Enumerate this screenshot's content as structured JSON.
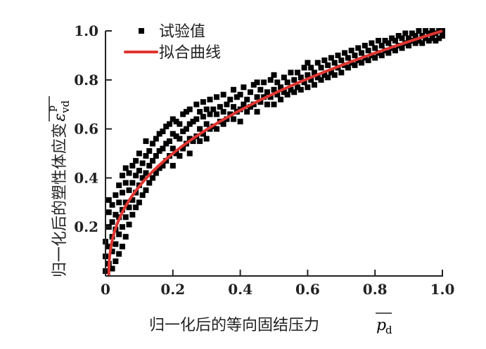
{
  "chart_data": {
    "type": "scatter",
    "title": "",
    "xlabel": "归一化后的等向固结压力",
    "xlabel_symbol": "p",
    "xlabel_sub": "d",
    "ylabel": "归一化后的塑性体应变",
    "ylabel_symbol": "ε",
    "ylabel_sub": "vd",
    "ylabel_sup": "p",
    "xlim": [
      0,
      1.0
    ],
    "ylim": [
      0,
      1.0
    ],
    "xticks": [
      "0",
      "0.2",
      "0.4",
      "0.6",
      "0.8",
      "1.0"
    ],
    "xtick_values": [
      0,
      0.2,
      0.4,
      0.6,
      0.8,
      1.0
    ],
    "yticks": [
      "0.2",
      "0.4",
      "0.6",
      "0.8",
      "1.0"
    ],
    "ytick_values": [
      0.2,
      0.4,
      0.6,
      0.8,
      1.0
    ],
    "grid": false,
    "legend_position": "top-left",
    "series": [
      {
        "name": "试验值",
        "kind": "scatter",
        "color": "#000000",
        "points": [
          [
            0.0,
            0.02
          ],
          [
            0.0,
            0.08
          ],
          [
            0.0,
            0.14
          ],
          [
            0.01,
            0.05
          ],
          [
            0.01,
            0.12
          ],
          [
            0.01,
            0.2
          ],
          [
            0.01,
            0.26
          ],
          [
            0.01,
            0.31
          ],
          [
            0.02,
            0.03
          ],
          [
            0.02,
            0.1
          ],
          [
            0.02,
            0.16
          ],
          [
            0.02,
            0.22
          ],
          [
            0.02,
            0.29
          ],
          [
            0.03,
            0.06
          ],
          [
            0.03,
            0.13
          ],
          [
            0.03,
            0.19
          ],
          [
            0.03,
            0.25
          ],
          [
            0.03,
            0.33
          ],
          [
            0.04,
            0.09
          ],
          [
            0.04,
            0.17
          ],
          [
            0.04,
            0.24
          ],
          [
            0.04,
            0.3
          ],
          [
            0.04,
            0.37
          ],
          [
            0.05,
            0.12
          ],
          [
            0.05,
            0.2
          ],
          [
            0.05,
            0.27
          ],
          [
            0.05,
            0.34
          ],
          [
            0.05,
            0.41
          ],
          [
            0.06,
            0.16
          ],
          [
            0.06,
            0.24
          ],
          [
            0.06,
            0.3
          ],
          [
            0.06,
            0.38
          ],
          [
            0.06,
            0.44
          ],
          [
            0.07,
            0.21
          ],
          [
            0.07,
            0.28
          ],
          [
            0.07,
            0.35
          ],
          [
            0.07,
            0.42
          ],
          [
            0.08,
            0.25
          ],
          [
            0.08,
            0.31
          ],
          [
            0.08,
            0.38
          ],
          [
            0.08,
            0.45
          ],
          [
            0.09,
            0.28
          ],
          [
            0.09,
            0.34
          ],
          [
            0.09,
            0.41
          ],
          [
            0.09,
            0.47
          ],
          [
            0.1,
            0.3
          ],
          [
            0.1,
            0.37
          ],
          [
            0.1,
            0.43
          ],
          [
            0.1,
            0.5
          ],
          [
            0.11,
            0.33
          ],
          [
            0.11,
            0.4
          ],
          [
            0.11,
            0.46
          ],
          [
            0.12,
            0.35
          ],
          [
            0.12,
            0.42
          ],
          [
            0.12,
            0.49
          ],
          [
            0.12,
            0.55
          ],
          [
            0.13,
            0.38
          ],
          [
            0.13,
            0.45
          ],
          [
            0.13,
            0.51
          ],
          [
            0.14,
            0.4
          ],
          [
            0.14,
            0.47
          ],
          [
            0.14,
            0.54
          ],
          [
            0.15,
            0.42
          ],
          [
            0.15,
            0.49
          ],
          [
            0.15,
            0.56
          ],
          [
            0.16,
            0.44
          ],
          [
            0.16,
            0.51
          ],
          [
            0.16,
            0.58
          ],
          [
            0.17,
            0.45
          ],
          [
            0.17,
            0.52
          ],
          [
            0.17,
            0.59
          ],
          [
            0.18,
            0.47
          ],
          [
            0.18,
            0.54
          ],
          [
            0.18,
            0.61
          ],
          [
            0.19,
            0.49
          ],
          [
            0.19,
            0.55
          ],
          [
            0.19,
            0.62
          ],
          [
            0.2,
            0.45
          ],
          [
            0.2,
            0.52
          ],
          [
            0.2,
            0.58
          ],
          [
            0.2,
            0.64
          ],
          [
            0.21,
            0.5
          ],
          [
            0.21,
            0.57
          ],
          [
            0.21,
            0.63
          ],
          [
            0.22,
            0.49
          ],
          [
            0.22,
            0.56
          ],
          [
            0.22,
            0.62
          ],
          [
            0.23,
            0.52
          ],
          [
            0.23,
            0.59
          ],
          [
            0.23,
            0.66
          ],
          [
            0.24,
            0.54
          ],
          [
            0.24,
            0.6
          ],
          [
            0.24,
            0.67
          ],
          [
            0.25,
            0.5
          ],
          [
            0.25,
            0.56
          ],
          [
            0.25,
            0.62
          ],
          [
            0.25,
            0.68
          ],
          [
            0.26,
            0.55
          ],
          [
            0.26,
            0.63
          ],
          [
            0.27,
            0.57
          ],
          [
            0.27,
            0.64
          ],
          [
            0.27,
            0.7
          ],
          [
            0.28,
            0.55
          ],
          [
            0.28,
            0.6
          ],
          [
            0.28,
            0.67
          ],
          [
            0.29,
            0.58
          ],
          [
            0.29,
            0.65
          ],
          [
            0.29,
            0.71
          ],
          [
            0.3,
            0.56
          ],
          [
            0.3,
            0.62
          ],
          [
            0.3,
            0.68
          ],
          [
            0.31,
            0.6
          ],
          [
            0.31,
            0.66
          ],
          [
            0.31,
            0.72
          ],
          [
            0.32,
            0.61
          ],
          [
            0.32,
            0.68
          ],
          [
            0.33,
            0.6
          ],
          [
            0.33,
            0.66
          ],
          [
            0.33,
            0.73
          ],
          [
            0.34,
            0.63
          ],
          [
            0.34,
            0.69
          ],
          [
            0.35,
            0.62
          ],
          [
            0.35,
            0.67
          ],
          [
            0.35,
            0.74
          ],
          [
            0.36,
            0.64
          ],
          [
            0.36,
            0.7
          ],
          [
            0.37,
            0.66
          ],
          [
            0.37,
            0.72
          ],
          [
            0.38,
            0.64
          ],
          [
            0.38,
            0.69
          ],
          [
            0.38,
            0.76
          ],
          [
            0.39,
            0.67
          ],
          [
            0.39,
            0.73
          ],
          [
            0.4,
            0.63
          ],
          [
            0.4,
            0.68
          ],
          [
            0.4,
            0.74
          ],
          [
            0.41,
            0.7
          ],
          [
            0.41,
            0.77
          ],
          [
            0.42,
            0.67
          ],
          [
            0.42,
            0.72
          ],
          [
            0.43,
            0.69
          ],
          [
            0.43,
            0.75
          ],
          [
            0.44,
            0.7
          ],
          [
            0.44,
            0.78
          ],
          [
            0.45,
            0.67
          ],
          [
            0.45,
            0.73
          ],
          [
            0.45,
            0.79
          ],
          [
            0.46,
            0.71
          ],
          [
            0.46,
            0.76
          ],
          [
            0.47,
            0.73
          ],
          [
            0.47,
            0.79
          ],
          [
            0.48,
            0.7
          ],
          [
            0.48,
            0.75
          ],
          [
            0.49,
            0.73
          ],
          [
            0.49,
            0.8
          ],
          [
            0.5,
            0.7
          ],
          [
            0.5,
            0.76
          ],
          [
            0.5,
            0.82
          ],
          [
            0.51,
            0.74
          ],
          [
            0.51,
            0.79
          ],
          [
            0.52,
            0.72
          ],
          [
            0.52,
            0.77
          ],
          [
            0.53,
            0.75
          ],
          [
            0.53,
            0.81
          ],
          [
            0.54,
            0.74
          ],
          [
            0.54,
            0.79
          ],
          [
            0.55,
            0.76
          ],
          [
            0.55,
            0.83
          ],
          [
            0.56,
            0.75
          ],
          [
            0.56,
            0.8
          ],
          [
            0.57,
            0.77
          ],
          [
            0.57,
            0.83
          ],
          [
            0.58,
            0.76
          ],
          [
            0.58,
            0.81
          ],
          [
            0.59,
            0.79
          ],
          [
            0.59,
            0.85
          ],
          [
            0.6,
            0.77
          ],
          [
            0.6,
            0.82
          ],
          [
            0.6,
            0.87
          ],
          [
            0.61,
            0.8
          ],
          [
            0.61,
            0.85
          ],
          [
            0.62,
            0.78
          ],
          [
            0.62,
            0.83
          ],
          [
            0.63,
            0.81
          ],
          [
            0.63,
            0.87
          ],
          [
            0.64,
            0.8
          ],
          [
            0.64,
            0.85
          ],
          [
            0.65,
            0.82
          ],
          [
            0.65,
            0.88
          ],
          [
            0.66,
            0.81
          ],
          [
            0.66,
            0.86
          ],
          [
            0.67,
            0.83
          ],
          [
            0.67,
            0.89
          ],
          [
            0.68,
            0.82
          ],
          [
            0.68,
            0.87
          ],
          [
            0.69,
            0.85
          ],
          [
            0.69,
            0.9
          ],
          [
            0.7,
            0.83
          ],
          [
            0.7,
            0.88
          ],
          [
            0.71,
            0.86
          ],
          [
            0.71,
            0.91
          ],
          [
            0.72,
            0.85
          ],
          [
            0.72,
            0.89
          ],
          [
            0.73,
            0.87
          ],
          [
            0.73,
            0.92
          ],
          [
            0.74,
            0.86
          ],
          [
            0.74,
            0.9
          ],
          [
            0.75,
            0.88
          ],
          [
            0.75,
            0.93
          ],
          [
            0.76,
            0.87
          ],
          [
            0.76,
            0.91
          ],
          [
            0.77,
            0.89
          ],
          [
            0.77,
            0.94
          ],
          [
            0.78,
            0.88
          ],
          [
            0.78,
            0.92
          ],
          [
            0.79,
            0.9
          ],
          [
            0.79,
            0.95
          ],
          [
            0.8,
            0.89
          ],
          [
            0.8,
            0.93
          ],
          [
            0.81,
            0.91
          ],
          [
            0.81,
            0.96
          ],
          [
            0.82,
            0.9
          ],
          [
            0.82,
            0.94
          ],
          [
            0.83,
            0.92
          ],
          [
            0.83,
            0.96
          ],
          [
            0.84,
            0.91
          ],
          [
            0.84,
            0.95
          ],
          [
            0.85,
            0.93
          ],
          [
            0.85,
            0.97
          ],
          [
            0.86,
            0.92
          ],
          [
            0.86,
            0.96
          ],
          [
            0.87,
            0.94
          ],
          [
            0.87,
            0.98
          ],
          [
            0.88,
            0.93
          ],
          [
            0.88,
            0.97
          ],
          [
            0.89,
            0.95
          ],
          [
            0.89,
            0.99
          ],
          [
            0.9,
            0.94
          ],
          [
            0.9,
            0.97
          ],
          [
            0.91,
            0.96
          ],
          [
            0.91,
            0.99
          ],
          [
            0.92,
            0.95
          ],
          [
            0.92,
            0.98
          ],
          [
            0.93,
            0.96
          ],
          [
            0.93,
            1.0
          ],
          [
            0.94,
            0.95
          ],
          [
            0.94,
            0.98
          ],
          [
            0.95,
            0.97
          ],
          [
            0.95,
            1.0
          ],
          [
            0.96,
            0.96
          ],
          [
            0.96,
            0.99
          ],
          [
            0.97,
            0.97
          ],
          [
            0.97,
            1.0
          ],
          [
            0.98,
            0.96
          ],
          [
            0.98,
            0.99
          ],
          [
            0.99,
            0.97
          ],
          [
            0.99,
            1.0
          ],
          [
            1.0,
            0.98
          ],
          [
            1.0,
            1.0
          ]
        ]
      },
      {
        "name": "拟合曲线",
        "kind": "line",
        "color": "#e03530",
        "function": "y = x^0.42",
        "exponent": 0.42,
        "x_start": 0.01
      }
    ]
  }
}
